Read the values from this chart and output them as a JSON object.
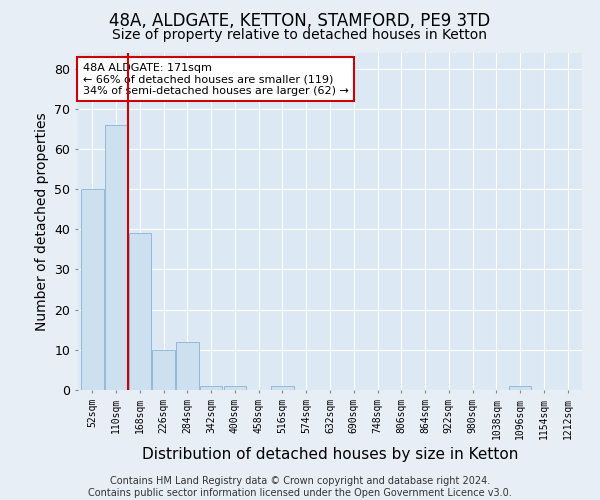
{
  "title1": "48A, ALDGATE, KETTON, STAMFORD, PE9 3TD",
  "title2": "Size of property relative to detached houses in Ketton",
  "xlabel": "Distribution of detached houses by size in Ketton",
  "ylabel": "Number of detached properties",
  "footer1": "Contains HM Land Registry data © Crown copyright and database right 2024.",
  "footer2": "Contains public sector information licensed under the Open Government Licence v3.0.",
  "annotation_line1": "48A ALDGATE: 171sqm",
  "annotation_line2": "← 66% of detached houses are smaller (119)",
  "annotation_line3": "34% of semi-detached houses are larger (62) →",
  "bar_values": [
    50,
    66,
    39,
    10,
    12,
    1,
    1,
    0,
    1,
    0,
    0,
    0,
    0,
    0,
    0,
    0,
    0,
    0,
    1,
    0,
    0
  ],
  "bin_labels": [
    "52sqm",
    "110sqm",
    "168sqm",
    "226sqm",
    "284sqm",
    "342sqm",
    "400sqm",
    "458sqm",
    "516sqm",
    "574sqm",
    "632sqm",
    "690sqm",
    "748sqm",
    "806sqm",
    "864sqm",
    "922sqm",
    "980sqm",
    "1038sqm",
    "1096sqm",
    "1154sqm",
    "1212sqm"
  ],
  "bar_color": "#cce0f0",
  "bar_edge_color": "#8ab4d4",
  "property_line_x": 1.5,
  "ylim": [
    0,
    84
  ],
  "yticks": [
    0,
    10,
    20,
    30,
    40,
    50,
    60,
    70,
    80
  ],
  "annotation_box_color": "#cc0000",
  "background_color": "#dce8f3",
  "grid_color": "#ffffff",
  "fig_background": "#e8eef5",
  "title_fontsize": 11,
  "subtitle_fontsize": 10,
  "axis_label_fontsize": 9,
  "tick_fontsize": 8,
  "footer_fontsize": 7
}
